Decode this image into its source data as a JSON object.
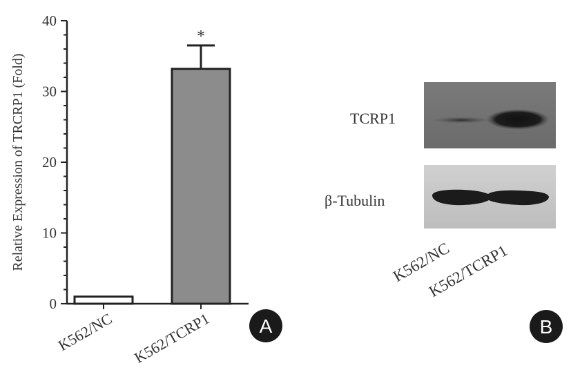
{
  "chart_data": {
    "type": "bar",
    "ylabel": "Relative Expression of TRCRP1 (Fold)",
    "categories": [
      "K562/NC",
      "K562/TCRP1"
    ],
    "values": [
      1.0,
      33.2
    ],
    "error_upper": [
      0,
      3.3
    ],
    "ylim": [
      0,
      40
    ],
    "yticks": [
      0,
      10,
      20,
      30,
      40
    ],
    "annotations": [
      "",
      "*"
    ],
    "bar_colors": [
      "#ffffff",
      "#8c8c8c"
    ],
    "grid": false,
    "legend": "none"
  },
  "panels": {
    "a": "A",
    "b": "B"
  },
  "blot": {
    "bands": [
      "TCRP1",
      "β-Tubulin"
    ],
    "lanes": [
      "K562/NC",
      "K562/TCRP1"
    ]
  },
  "colors": {
    "axis": "#222222",
    "badge": "#1a1a1a",
    "badge_text": "#ffffff"
  }
}
